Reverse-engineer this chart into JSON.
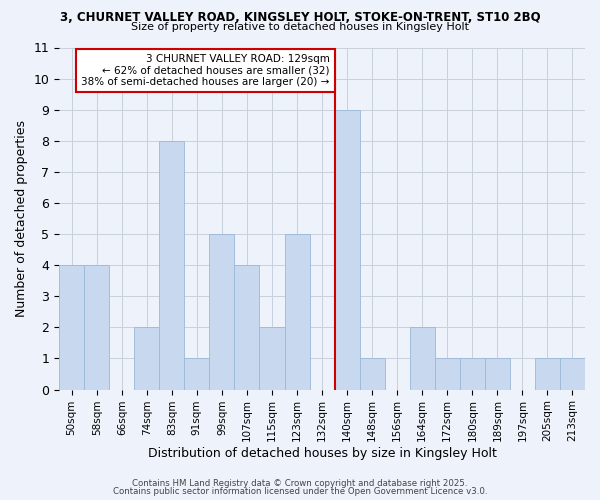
{
  "title_line1": "3, CHURNET VALLEY ROAD, KINGSLEY HOLT, STOKE-ON-TRENT, ST10 2BQ",
  "title_line2": "Size of property relative to detached houses in Kingsley Holt",
  "xlabel": "Distribution of detached houses by size in Kingsley Holt",
  "ylabel": "Number of detached properties",
  "bins": [
    "50sqm",
    "58sqm",
    "66sqm",
    "74sqm",
    "83sqm",
    "91sqm",
    "99sqm",
    "107sqm",
    "115sqm",
    "123sqm",
    "132sqm",
    "140sqm",
    "148sqm",
    "156sqm",
    "164sqm",
    "172sqm",
    "180sqm",
    "189sqm",
    "197sqm",
    "205sqm",
    "213sqm"
  ],
  "counts": [
    4,
    4,
    0,
    2,
    8,
    1,
    5,
    4,
    2,
    5,
    0,
    9,
    1,
    0,
    2,
    1,
    1,
    1,
    0,
    1,
    1
  ],
  "bar_color": "#c8d8ef",
  "bar_edge_color": "#9ab8d8",
  "vline_x_index": 10.5,
  "annotation_title": "3 CHURNET VALLEY ROAD: 129sqm",
  "annotation_line2": "← 62% of detached houses are smaller (32)",
  "annotation_line3": "38% of semi-detached houses are larger (20) →",
  "annotation_box_facecolor": "#ffffff",
  "annotation_box_edgecolor": "#cc0000",
  "vline_color": "#cc0000",
  "ylim": [
    0,
    11
  ],
  "yticks": [
    0,
    1,
    2,
    3,
    4,
    5,
    6,
    7,
    8,
    9,
    10,
    11
  ],
  "grid_color": "#c8d0dc",
  "bg_color": "#eef2fa",
  "footer_line1": "Contains HM Land Registry data © Crown copyright and database right 2025.",
  "footer_line2": "Contains public sector information licensed under the Open Government Licence v3.0."
}
